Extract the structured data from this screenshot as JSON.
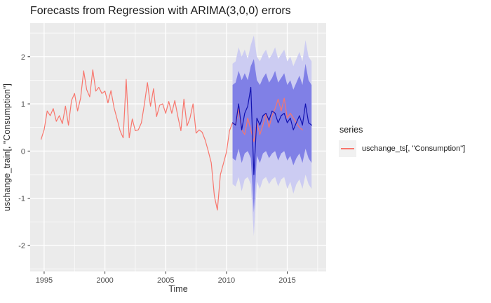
{
  "chart_data": {
    "type": "line",
    "title": "Forecasts from Regression with ARIMA(3,0,0) errors",
    "xlabel": "Time",
    "ylabel": "uschange_train[, \"Consumption\"]",
    "xlim": [
      1993.85,
      2018.2
    ],
    "ylim": [
      -2.55,
      2.71
    ],
    "grid": true,
    "x_ticks": [
      1995,
      2000,
      2005,
      2010,
      2015
    ],
    "x_tick_labels": [
      "1995",
      "2000",
      "2005",
      "2010",
      "2015"
    ],
    "x_minor": [
      1997.5,
      2002.5,
      2007.5,
      2012.5,
      2017.5
    ],
    "y_ticks": [
      -2,
      -1,
      0,
      1,
      2
    ],
    "y_tick_labels": [
      "-2",
      "-1",
      "0",
      "1",
      "2"
    ],
    "y_minor": [
      -2.5,
      -1.5,
      -0.5,
      0.5,
      1.5,
      2.5
    ],
    "colors": {
      "panel_bg": "#EBEBEB",
      "grid": "#FFFFFF",
      "tick_mark": "#333333",
      "observed": "#F8766D",
      "forecast_line": "#1212B0",
      "ribbon80": "#8080E6",
      "ribbon95": "#CCCCF2"
    },
    "legend": {
      "title": "series",
      "position": "right",
      "items": [
        {
          "label": "uschange_ts[, \"Consumption\"]",
          "color": "#F8766D"
        }
      ]
    },
    "ribbons": [
      {
        "name": "interval-95",
        "color": "#CCCCF2",
        "x_start": 2010.5,
        "x_step": 0.25,
        "upper": [
          1.85,
          1.9,
          2.2,
          2.0,
          2.15,
          1.95,
          2.25,
          2.45,
          2.0,
          1.9,
          2.05,
          2.15,
          1.95,
          2.05,
          2.2,
          1.95,
          2.05,
          2.15,
          1.9,
          2.0,
          1.8,
          1.95,
          2.1,
          1.9,
          2.35,
          2.0,
          1.9
        ],
        "lower": [
          -0.7,
          -0.75,
          -0.55,
          -0.85,
          -0.6,
          -0.55,
          -0.7,
          -1.8,
          -0.65,
          -0.8,
          -0.6,
          -0.55,
          -0.7,
          -0.6,
          -0.55,
          -0.75,
          -0.6,
          -0.55,
          -0.8,
          -0.65,
          -0.9,
          -0.7,
          -0.6,
          -0.8,
          -0.5,
          -0.7,
          -0.8
        ]
      },
      {
        "name": "interval-80",
        "color": "#8080E6",
        "x_start": 2010.5,
        "x_step": 0.25,
        "upper": [
          1.4,
          1.45,
          1.7,
          1.5,
          1.65,
          1.5,
          1.8,
          1.95,
          1.5,
          1.4,
          1.55,
          1.65,
          1.45,
          1.55,
          1.7,
          1.45,
          1.55,
          1.65,
          1.4,
          1.5,
          1.3,
          1.45,
          1.6,
          1.4,
          1.85,
          1.5,
          1.4
        ],
        "lower": [
          -0.15,
          -0.2,
          0.05,
          -0.25,
          -0.05,
          0.0,
          -0.15,
          -1.3,
          -0.1,
          -0.25,
          -0.05,
          0.0,
          -0.15,
          -0.05,
          0.0,
          -0.2,
          -0.05,
          0.0,
          -0.2,
          -0.1,
          -0.3,
          -0.15,
          -0.05,
          -0.25,
          0.05,
          -0.15,
          -0.25
        ]
      }
    ],
    "series": [
      {
        "name": "uschange_ts[, \"Consumption\"]",
        "color": "#F8766D",
        "x_start": 1994.75,
        "x_step": 0.25,
        "values": [
          0.25,
          0.45,
          0.85,
          0.75,
          0.9,
          0.63,
          0.75,
          0.58,
          0.95,
          0.55,
          1.07,
          1.22,
          0.85,
          1.12,
          1.7,
          1.3,
          1.15,
          1.72,
          1.27,
          1.35,
          1.22,
          1.27,
          1.02,
          1.28,
          0.92,
          0.68,
          0.43,
          0.28,
          1.52,
          0.28,
          0.68,
          0.43,
          0.45,
          0.6,
          1.0,
          1.45,
          0.95,
          1.32,
          0.73,
          0.97,
          1.0,
          0.8,
          1.05,
          0.8,
          1.07,
          0.73,
          0.43,
          1.1,
          0.53,
          0.7,
          1.0,
          0.38,
          0.45,
          0.4,
          0.23,
          0.0,
          -0.25,
          -0.95,
          -1.25,
          -0.5,
          -0.26,
          -0.02,
          0.43,
          0.6,
          0.55,
          0.9,
          0.45,
          0.35,
          0.7,
          0.45,
          0.2,
          0.6,
          0.35,
          0.55,
          0.8,
          0.5,
          0.75,
          0.9,
          1.1,
          0.85,
          1.12,
          0.7,
          0.8,
          0.7,
          0.6,
          0.5,
          0.45
        ]
      },
      {
        "name": "forecast-mean",
        "color": "#1212B0",
        "x_start": 2010.5,
        "x_step": 0.25,
        "values": [
          0.6,
          0.55,
          1.0,
          0.45,
          0.8,
          0.95,
          1.35,
          -0.5,
          0.7,
          0.55,
          0.75,
          0.8,
          0.65,
          0.85,
          0.8,
          0.6,
          0.75,
          0.8,
          0.6,
          0.7,
          0.45,
          0.6,
          0.75,
          0.55,
          1.0,
          0.6,
          0.55
        ]
      }
    ]
  }
}
